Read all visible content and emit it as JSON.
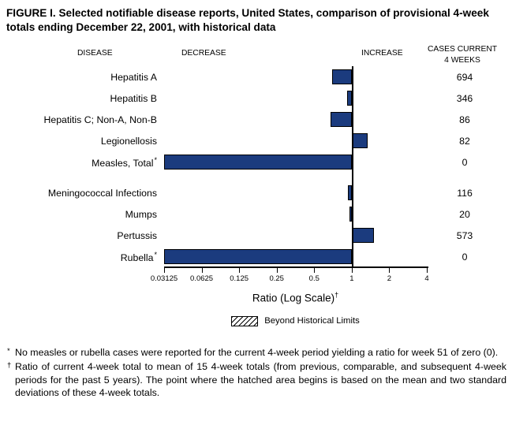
{
  "figure": {
    "title": "FIGURE I. Selected notifiable disease reports, United States, comparison of provisional 4-week totals ending December 22, 2001, with historical data"
  },
  "headers": {
    "disease": "DISEASE",
    "decrease": "DECREASE",
    "increase": "INCREASE",
    "cases_line1": "CASES CURRENT",
    "cases_line2": "4 WEEKS"
  },
  "chart_data": {
    "type": "bar",
    "orientation": "horizontal",
    "title": "FIGURE I. Selected notifiable disease reports, United States, comparison of provisional 4-week totals ending December 22, 2001, with historical data",
    "x_scale": "log2",
    "x_range": [
      0.03125,
      4
    ],
    "baseline": 1,
    "x_ticks": [
      "0.03125",
      "0.0625",
      "0.125",
      "0.25",
      "0.5",
      "1",
      "2",
      "4"
    ],
    "xlabel": "Ratio (Log Scale)",
    "xlabel_note_symbol": "†",
    "bar_color": "#1b3b7e",
    "grid": false,
    "legend": [
      {
        "label": "Beyond Historical Limits",
        "swatch": "diagonal-hatch"
      }
    ],
    "rows": [
      {
        "disease": "Hepatitis A",
        "ratio": 0.7,
        "cases": "694"
      },
      {
        "disease": "Hepatitis B",
        "ratio": 0.92,
        "cases": "346"
      },
      {
        "disease": "Hepatitis C; Non-A, Non-B",
        "ratio": 0.68,
        "cases": "86"
      },
      {
        "disease": "Legionellosis",
        "ratio": 1.35,
        "cases": "82"
      },
      {
        "disease": "Measles, Total",
        "ratio": 0,
        "cases": "0",
        "footnote": "*"
      },
      {
        "disease": "Meningococcal Infections",
        "ratio": 0.93,
        "cases": "116",
        "gap_before": true
      },
      {
        "disease": "Mumps",
        "ratio": 0.96,
        "cases": "20"
      },
      {
        "disease": "Pertussis",
        "ratio": 1.5,
        "cases": "573"
      },
      {
        "disease": "Rubella",
        "ratio": 0,
        "cases": "0",
        "footnote": "*"
      }
    ]
  },
  "footnotes": [
    {
      "symbol": "*",
      "text": "No measles or rubella cases were reported for the current 4-week period yielding a ratio for week 51 of zero (0)."
    },
    {
      "symbol": "†",
      "text": "Ratio of current 4-week total to mean of 15 4-week totals (from previous, comparable, and subsequent 4-week periods for the past 5 years). The point where the hatched area begins is based on the mean and two standard deviations of these 4-week totals."
    }
  ]
}
